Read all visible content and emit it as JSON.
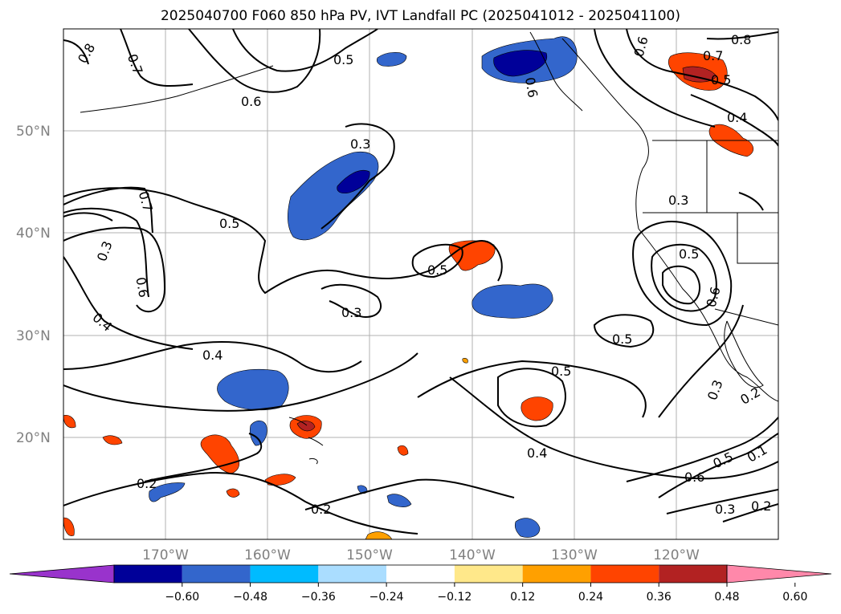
{
  "title": "2025040700 F060 850 hPa PV, IVT Landfall PC (2025041012 - 2025041100)",
  "map": {
    "lon_range": [
      "180°W",
      "110°W"
    ],
    "lat_range": [
      "10°N",
      "60°N"
    ],
    "lat_labels": [
      "50°N",
      "40°N",
      "30°N",
      "20°N"
    ],
    "lon_labels": [
      "170°W",
      "160°W",
      "150°W",
      "140°W",
      "130°W",
      "120°W"
    ],
    "grid": true,
    "contour_labels": [
      "0.8",
      "0.7",
      "0.6",
      "0.5",
      "0.6",
      "0.3",
      "0.6",
      "0.8",
      "0.7",
      "0.5",
      "0.4",
      "0.3",
      "0.7",
      "0.5",
      "0.3",
      "0.6",
      "0.5",
      "0.5",
      "0.4",
      "0.3",
      "0.6",
      "0.4",
      "0.5",
      "0.5",
      "0.4",
      "0.3",
      "0.2",
      "0.2",
      "0.2",
      "0.5",
      "0.6",
      "0.3",
      "0.2",
      "0.1"
    ]
  },
  "colorbar": {
    "colors": [
      "#9933cc",
      "#000099",
      "#3366cc",
      "#00bbff",
      "#aaddff",
      "#ffffff",
      "#ffe88a",
      "#ffa000",
      "#ff4400",
      "#b22222",
      "#ff88aa"
    ],
    "ticks": [
      "−0.60",
      "−0.48",
      "−0.36",
      "−0.24",
      "−0.12",
      "0.12",
      "0.24",
      "0.36",
      "0.48",
      "0.60"
    ]
  }
}
